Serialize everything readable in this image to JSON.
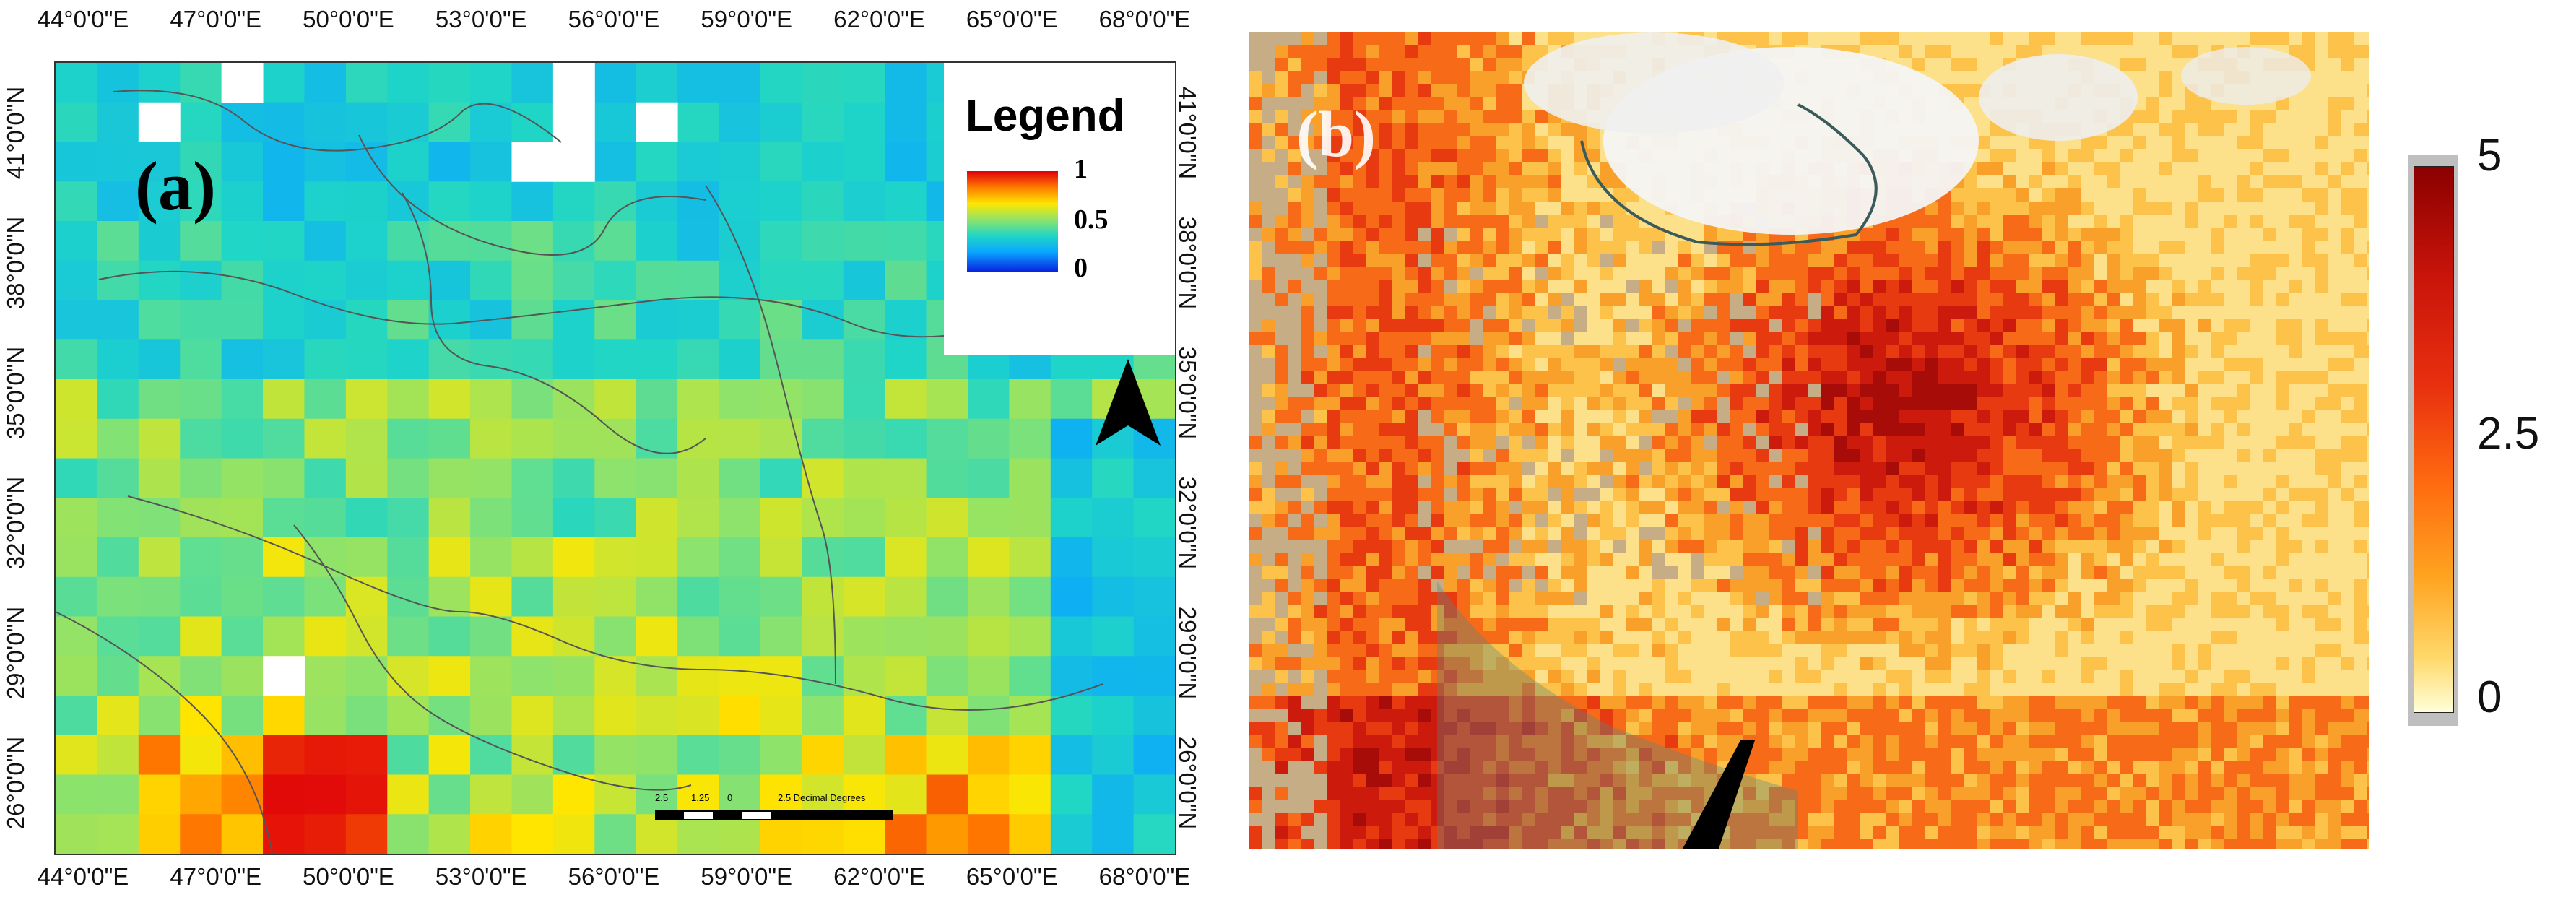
{
  "panel_a": {
    "tag": "(a)",
    "lon_labels": [
      "44°0'0\"E",
      "47°0'0\"E",
      "50°0'0\"E",
      "53°0'0\"E",
      "56°0'0\"E",
      "59°0'0\"E",
      "62°0'0\"E",
      "65°0'0\"E",
      "68°0'0\"E"
    ],
    "lat_labels": [
      "41°0'0\"N",
      "38°0'0\"N",
      "35°0'0\"N",
      "32°0'0\"N",
      "29°0'0\"N",
      "26°0'0\"N"
    ],
    "legend": {
      "title": "Legend",
      "max": "1",
      "mid": "0.5",
      "min": "0"
    },
    "scale": {
      "ticks": [
        "2.5",
        "1.25",
        "0",
        "2.5 Decimal Degrees"
      ]
    }
  },
  "panel_b": {
    "tag": "(b)",
    "colorbar": {
      "max": "5",
      "mid": "2.5",
      "min": "0"
    }
  },
  "colors": {
    "high": "#e0000a",
    "mid": "#ffe600",
    "low": "#0a1ee0",
    "sat_high": "#b10f0b",
    "sat_low": "#ffe08a",
    "cloud": "#f2f2f2",
    "desert": "#c9b18e"
  },
  "icons": [
    "north-arrow-icon",
    "scale-bar-icon"
  ]
}
